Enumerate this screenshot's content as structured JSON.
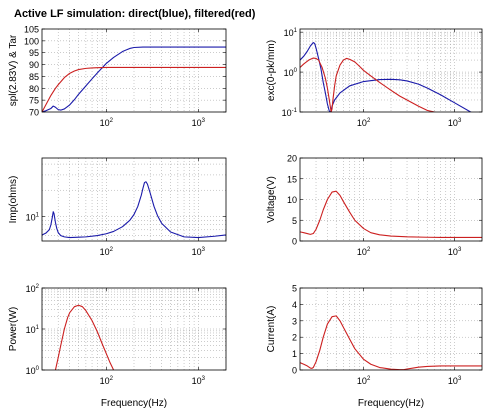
{
  "figure": {
    "title": "Active LF simulation: direct(blue), filtered(red)",
    "colors": {
      "direct": "#1a1aaa",
      "filtered": "#cc2020",
      "grid": "#9a9a9a"
    }
  },
  "chart_data": [
    {
      "id": "spl",
      "type": "line",
      "ylabel": "spl(2.83V) & Tar",
      "xlabel": "",
      "xscale": "log",
      "yscale": "linear",
      "xlim": [
        20,
        2000
      ],
      "ylim": [
        70,
        105
      ],
      "xticks": [
        100,
        1000
      ],
      "yticks": [
        70,
        75,
        80,
        85,
        90,
        95,
        100,
        105
      ],
      "grid": true,
      "series": [
        {
          "role": "direct",
          "color": "#1a1aaa",
          "x": [
            20,
            22,
            25,
            26.5,
            28,
            30,
            32,
            35,
            40,
            45,
            50,
            60,
            70,
            80,
            100,
            120,
            150,
            180,
            200,
            250,
            300,
            500,
            1000,
            2000
          ],
          "y": [
            70,
            70.5,
            71.5,
            72.5,
            72,
            71,
            70.8,
            71.3,
            73,
            75.2,
            77.5,
            81,
            84,
            86.5,
            90.5,
            93,
            95.5,
            96.8,
            97.2,
            97.4,
            97.4,
            97.4,
            97.4,
            97.4
          ]
        },
        {
          "role": "filtered",
          "color": "#cc2020",
          "x": [
            20,
            22,
            25,
            28,
            30,
            35,
            40,
            45,
            50,
            60,
            70,
            80,
            100,
            150,
            200,
            500,
            1000,
            2000
          ],
          "y": [
            70,
            73,
            77,
            80,
            81.5,
            84.5,
            86.3,
            87.3,
            87.9,
            88.4,
            88.6,
            88.7,
            88.8,
            88.8,
            88.8,
            88.8,
            88.8,
            88.8
          ]
        }
      ]
    },
    {
      "id": "exc",
      "type": "line",
      "ylabel": "exc(0-pk/mm)",
      "xlabel": "",
      "xscale": "log",
      "yscale": "log",
      "xlim": [
        20,
        2000
      ],
      "ylim": [
        0.1,
        12
      ],
      "xticks": [
        100,
        1000
      ],
      "yticks": [
        0.1,
        1,
        10
      ],
      "grid": true,
      "series": [
        {
          "role": "direct",
          "color": "#1a1aaa",
          "x": [
            20,
            22,
            24,
            26,
            28,
            29,
            30,
            32,
            34,
            36,
            38,
            40,
            42,
            43,
            44,
            45,
            48,
            55,
            70,
            100,
            150,
            200,
            250,
            300,
            400,
            500,
            700,
            1000,
            1500,
            2000
          ],
          "y": [
            2.0,
            2.5,
            3.3,
            4.5,
            5.5,
            5.2,
            4.0,
            2.2,
            1.2,
            0.55,
            0.3,
            0.16,
            0.105,
            0.1,
            0.11,
            0.14,
            0.2,
            0.3,
            0.45,
            0.58,
            0.65,
            0.66,
            0.64,
            0.6,
            0.5,
            0.4,
            0.27,
            0.17,
            0.1,
            0.07
          ]
        },
        {
          "role": "filtered",
          "color": "#cc2020",
          "x": [
            20,
            22,
            25,
            28,
            30,
            32,
            35,
            38,
            40,
            42,
            43,
            44,
            45,
            46,
            48,
            50,
            55,
            60,
            65,
            70,
            80,
            90,
            100,
            120,
            150,
            200,
            250,
            300,
            400,
            500,
            600,
            700
          ],
          "y": [
            1.3,
            1.6,
            2.0,
            2.25,
            2.2,
            2.0,
            1.3,
            0.7,
            0.4,
            0.2,
            0.14,
            0.1,
            0.12,
            0.2,
            0.45,
            0.8,
            1.5,
            2.0,
            2.2,
            2.1,
            1.8,
            1.4,
            1.1,
            0.8,
            0.55,
            0.35,
            0.25,
            0.2,
            0.14,
            0.11,
            0.1,
            0.09
          ]
        }
      ]
    },
    {
      "id": "imp",
      "type": "line",
      "ylabel": "Imp(ohms)",
      "xlabel": "",
      "xscale": "log",
      "yscale": "log",
      "xlim": [
        20,
        2000
      ],
      "ylim": [
        5.2,
        47
      ],
      "xticks": [
        100,
        1000
      ],
      "yticks": [
        10
      ],
      "grid": true,
      "series": [
        {
          "role": "direct",
          "color": "#1a1aaa",
          "x": [
            20,
            22,
            24,
            25,
            26,
            26.5,
            27,
            28,
            29,
            30,
            32,
            35,
            40,
            50,
            60,
            80,
            100,
            120,
            150,
            180,
            200,
            220,
            240,
            250,
            260,
            270,
            280,
            300,
            330,
            360,
            400,
            500,
            700,
            1000,
            1500,
            2000
          ],
          "y": [
            6.1,
            6.4,
            7.0,
            8.0,
            10.0,
            11.3,
            10.8,
            8.5,
            7.2,
            6.5,
            6.0,
            5.8,
            5.7,
            5.75,
            5.8,
            6.0,
            6.3,
            6.7,
            7.6,
            9.0,
            10.5,
            13.0,
            17.5,
            21.0,
            24.5,
            25.0,
            23.5,
            18.5,
            13.0,
            10.2,
            8.3,
            6.6,
            5.8,
            5.7,
            5.9,
            6.1
          ]
        }
      ]
    },
    {
      "id": "voltage",
      "type": "line",
      "ylabel": "Voltage(V)",
      "xlabel": "",
      "xscale": "log",
      "yscale": "linear",
      "xlim": [
        20,
        2000
      ],
      "ylim": [
        0,
        20
      ],
      "xticks": [
        100,
        1000
      ],
      "yticks": [
        0,
        5,
        10,
        15,
        20
      ],
      "grid": true,
      "series": [
        {
          "role": "filtered",
          "color": "#cc2020",
          "x": [
            20,
            22,
            24,
            26,
            28,
            30,
            33,
            36,
            40,
            45,
            50,
            55,
            60,
            70,
            80,
            100,
            120,
            150,
            200,
            300,
            500,
            700,
            1000,
            2000
          ],
          "y": [
            2.2,
            2.0,
            1.8,
            1.6,
            1.8,
            2.8,
            5.0,
            7.5,
            10.0,
            11.8,
            12.0,
            11.0,
            9.5,
            7.0,
            5.0,
            3.0,
            2.0,
            1.5,
            1.2,
            1.0,
            0.9,
            0.85,
            0.85,
            0.85
          ]
        }
      ]
    },
    {
      "id": "power",
      "type": "line",
      "ylabel": "Power(W)",
      "xlabel": "Frequency(Hz)",
      "xscale": "log",
      "yscale": "log",
      "xlim": [
        20,
        2000
      ],
      "ylim": [
        1,
        100
      ],
      "xticks": [
        100,
        1000
      ],
      "yticks": [
        1,
        10,
        100
      ],
      "grid": true,
      "series": [
        {
          "role": "filtered",
          "color": "#cc2020",
          "x": [
            28,
            30,
            32,
            35,
            38,
            40,
            45,
            50,
            55,
            60,
            70,
            80,
            90,
            100,
            110,
            120
          ],
          "y": [
            1,
            2.0,
            4.0,
            10,
            19,
            25,
            35,
            38,
            35,
            28,
            16,
            8.5,
            4.4,
            2.5,
            1.5,
            1
          ]
        }
      ]
    },
    {
      "id": "current",
      "type": "line",
      "ylabel": "Current(A)",
      "xlabel": "Frequency(Hz)",
      "xscale": "log",
      "yscale": "linear",
      "xlim": [
        20,
        2000
      ],
      "ylim": [
        0,
        5
      ],
      "xticks": [
        100,
        1000
      ],
      "yticks": [
        0,
        1,
        2,
        3,
        4,
        5
      ],
      "grid": true,
      "series": [
        {
          "role": "filtered",
          "color": "#cc2020",
          "x": [
            20,
            22,
            24,
            26,
            27,
            28,
            30,
            33,
            36,
            40,
            45,
            50,
            55,
            60,
            70,
            80,
            100,
            120,
            150,
            200,
            250,
            280,
            300,
            350,
            400,
            500,
            700,
            1000,
            2000
          ],
          "y": [
            0.45,
            0.35,
            0.25,
            0.12,
            0.1,
            0.15,
            0.5,
            1.2,
            2.0,
            2.8,
            3.25,
            3.3,
            3.0,
            2.6,
            1.9,
            1.3,
            0.65,
            0.35,
            0.15,
            0.05,
            0.02,
            0.03,
            0.06,
            0.12,
            0.17,
            0.22,
            0.25,
            0.25,
            0.25
          ]
        }
      ]
    }
  ]
}
